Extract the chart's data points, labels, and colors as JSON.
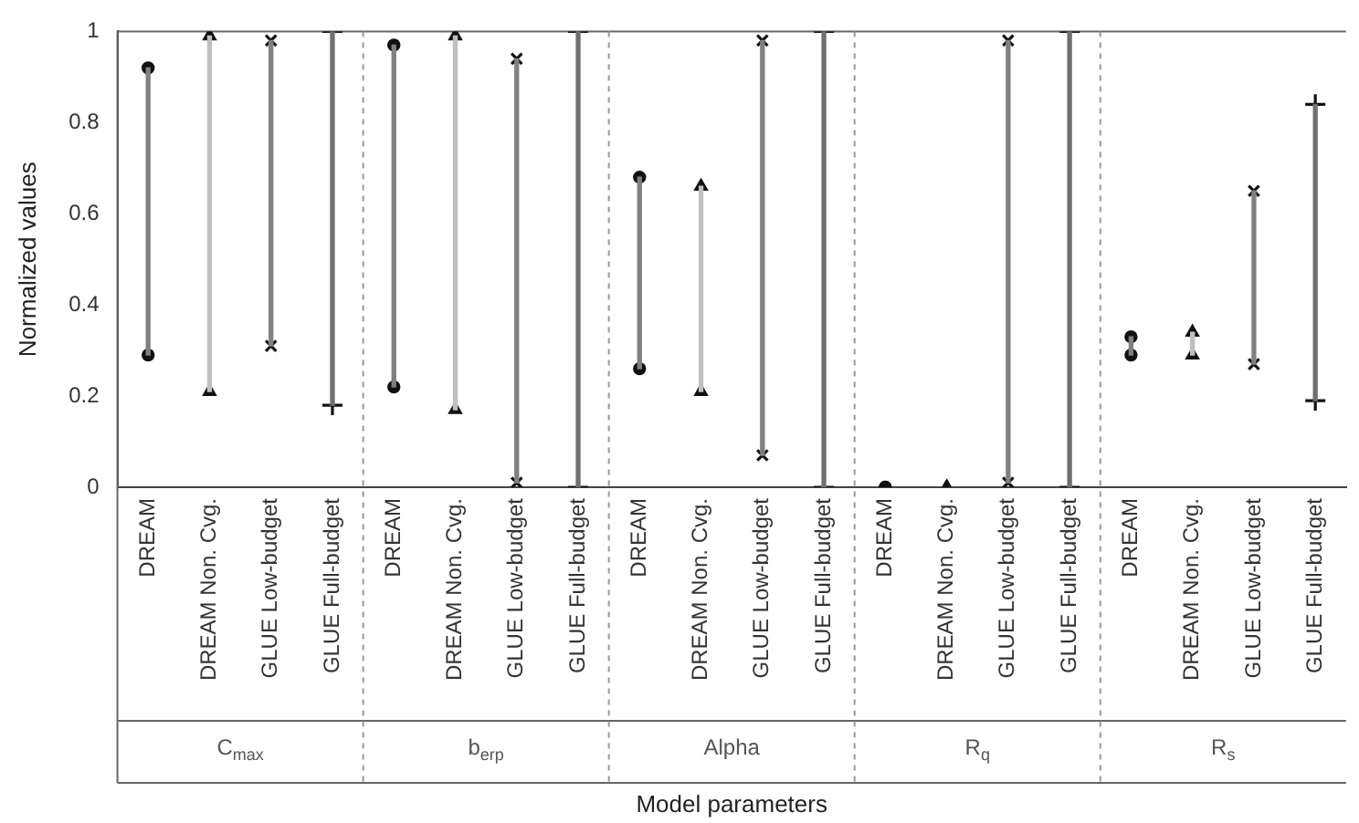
{
  "chart_data": {
    "type": "bar",
    "ylabel": "Normalized values",
    "xlabel": "Model parameters",
    "categories": [
      "DREAM",
      "DREAM Non. Cvg.",
      "GLUE Low-budget",
      "GLUE Full-budget",
      "DREAM",
      "DREAM Non. Cvg.",
      "GLUE Low-budget",
      "GLUE Full-budget",
      "DREAM",
      "DREAM Non. Cvg.",
      "GLUE Low-budget",
      "GLUE Full-budget",
      "DREAM",
      "DREAM Non. Cvg.",
      "GLUE Low-budget",
      "GLUE Full-budget",
      "DREAM",
      "DREAM Non. Cvg.",
      "GLUE Low-budget",
      "GLUE Full-budget"
    ],
    "annotations": [
      "C$_{max}$",
      "b$_{erp}$",
      "Alpha",
      "R$_{q}$",
      "R$_{s}$"
    ],
    "series": [
      {
        "color": "#808080",
        "base": [
          0.29,
          null,
          null,
          null,
          0.22,
          null,
          null,
          null,
          0.26,
          null,
          null,
          null,
          null,
          null,
          null,
          null,
          0.29,
          null,
          null,
          null
        ],
        "values": [
          0.63,
          null,
          null,
          null,
          0.75,
          null,
          null,
          null,
          0.42,
          null,
          null,
          null,
          null,
          null,
          null,
          null,
          0.04,
          null,
          null,
          null
        ]
      },
      {
        "color": "#c0c0c0",
        "base": [
          null,
          0.21,
          null,
          null,
          null,
          0.17,
          null,
          null,
          null,
          0.21,
          null,
          null,
          null,
          null,
          null,
          null,
          null,
          0.29,
          null,
          null
        ],
        "values": [
          null,
          0.78,
          null,
          null,
          null,
          0.82,
          null,
          null,
          null,
          0.45,
          null,
          null,
          null,
          null,
          null,
          null,
          null,
          0.05,
          null,
          null
        ]
      },
      {
        "color": "#808080",
        "base": [
          null,
          null,
          0.31,
          null,
          null,
          null,
          0.01,
          null,
          null,
          null,
          0.07,
          null,
          null,
          null,
          0.01,
          null,
          null,
          null,
          0.27,
          null
        ],
        "values": [
          null,
          null,
          0.67,
          null,
          null,
          null,
          0.93,
          null,
          null,
          null,
          0.91,
          null,
          null,
          null,
          0.97,
          null,
          null,
          null,
          0.38,
          null
        ]
      },
      {
        "color": "#707070",
        "base": [
          null,
          null,
          null,
          0.18,
          null,
          null,
          null,
          0,
          null,
          null,
          null,
          0,
          null,
          null,
          null,
          0,
          null,
          null,
          null,
          0.19
        ],
        "values": [
          null,
          null,
          null,
          0.82,
          null,
          null,
          null,
          1,
          null,
          null,
          null,
          1,
          null,
          null,
          null,
          1,
          null,
          null,
          null,
          0.65
        ]
      },
      {
        "type": "scatter",
        "marker": "circle",
        "color": "#111111",
        "values": [
          0.92,
          null,
          null,
          null,
          0.97,
          null,
          null,
          null,
          0.68,
          null,
          null,
          null,
          0,
          null,
          null,
          null,
          0.33,
          null,
          null,
          null
        ]
      },
      {
        "type": "scatter",
        "marker": "circle",
        "color": "#111111",
        "values": [
          0.29,
          null,
          null,
          null,
          0.22,
          null,
          null,
          null,
          0.26,
          null,
          null,
          null,
          0,
          null,
          null,
          null,
          0.29,
          null,
          null,
          null
        ]
      },
      {
        "type": "scatter",
        "marker": "triangle",
        "color": "#111111",
        "values": [
          null,
          0.99,
          null,
          null,
          null,
          0.99,
          null,
          null,
          null,
          0.66,
          null,
          null,
          null,
          0,
          null,
          null,
          null,
          0.34,
          null,
          null
        ]
      },
      {
        "type": "scatter",
        "marker": "triangle",
        "color": "#111111",
        "values": [
          null,
          0.21,
          null,
          null,
          null,
          0.17,
          null,
          null,
          null,
          0.21,
          null,
          null,
          null,
          0,
          null,
          null,
          null,
          0.29,
          null,
          null
        ]
      },
      {
        "type": "scatter",
        "marker": "cross",
        "color": "#111111",
        "values": [
          null,
          null,
          0.98,
          null,
          null,
          null,
          0.94,
          null,
          null,
          null,
          0.98,
          null,
          null,
          null,
          0.98,
          null,
          null,
          null,
          0.65,
          null
        ]
      },
      {
        "type": "scatter",
        "marker": "cross",
        "color": "#111111",
        "values": [
          null,
          null,
          0.31,
          null,
          null,
          null,
          0.01,
          null,
          null,
          null,
          0.07,
          null,
          null,
          null,
          0.01,
          null,
          null,
          null,
          0.27,
          null
        ]
      },
      {
        "type": "scatter",
        "marker": "plus",
        "color": "#111111",
        "values": [
          null,
          null,
          null,
          1,
          null,
          null,
          null,
          1,
          null,
          null,
          null,
          1,
          null,
          null,
          null,
          1,
          null,
          null,
          null,
          0.84
        ]
      },
      {
        "type": "scatter",
        "marker": "plus",
        "color": "#111111",
        "values": [
          null,
          null,
          null,
          0.18,
          null,
          null,
          null,
          0,
          null,
          null,
          null,
          0,
          null,
          null,
          null,
          0,
          null,
          null,
          null,
          0.19
        ]
      }
    ],
    "ylim": [
      0,
      1
    ],
    "yticks": [
      0,
      0.2,
      0.4,
      0.6,
      0.8,
      1
    ],
    "grid": false,
    "legend": false
  }
}
